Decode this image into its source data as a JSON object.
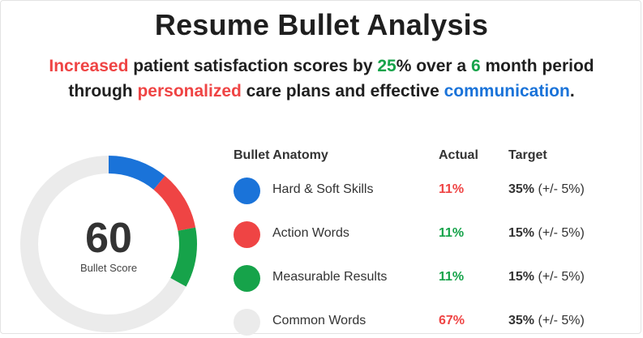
{
  "title": "Resume Bullet Analysis",
  "bullet": {
    "parts": [
      {
        "text": "Increased",
        "style": "red"
      },
      {
        "text": " patient satisfaction scores by ",
        "style": "plain"
      },
      {
        "text": "25",
        "style": "green"
      },
      {
        "text": "% over a ",
        "style": "plain"
      },
      {
        "text": "6",
        "style": "green"
      },
      {
        "text": " month period through ",
        "style": "plain"
      },
      {
        "text": "personalized",
        "style": "red"
      },
      {
        "text": " care plans and effective ",
        "style": "plain"
      },
      {
        "text": "communication",
        "style": "blue"
      },
      {
        "text": ".",
        "style": "plain"
      }
    ]
  },
  "score": {
    "value": "60",
    "label": "Bullet Score"
  },
  "table": {
    "headers": {
      "anatomy": "Bullet Anatomy",
      "actual": "Actual",
      "target": "Target"
    },
    "rows": [
      {
        "label": "Hard & Soft Skills",
        "color": "#1a73d9",
        "actual": "11%",
        "actual_color": "#ef4444",
        "target": "35%",
        "tolerance": "(+/- 5%)"
      },
      {
        "label": "Action Words",
        "color": "#ef4444",
        "actual": "11%",
        "actual_color": "#16a34a",
        "target": "15%",
        "tolerance": "(+/- 5%)"
      },
      {
        "label": "Measurable Results",
        "color": "#16a34a",
        "actual": "11%",
        "actual_color": "#16a34a",
        "target": "15%",
        "tolerance": "(+/- 5%)"
      },
      {
        "label": "Common Words",
        "color": "#ebebeb",
        "actual": "67%",
        "actual_color": "#ef4444",
        "target": "35%",
        "tolerance": "(+/- 5%)"
      }
    ]
  },
  "donut_segments": [
    {
      "name": "Hard & Soft Skills",
      "fraction": 0.11,
      "color": "#1a73d9"
    },
    {
      "name": "Action Words",
      "fraction": 0.11,
      "color": "#ef4444"
    },
    {
      "name": "Measurable Results",
      "fraction": 0.11,
      "color": "#16a34a"
    },
    {
      "name": "Common Words",
      "fraction": 0.67,
      "color": "#ebebeb"
    }
  ],
  "colors": {
    "red": "#ef4444",
    "green": "#16a34a",
    "blue": "#1a73d9",
    "gray": "#ebebeb"
  }
}
